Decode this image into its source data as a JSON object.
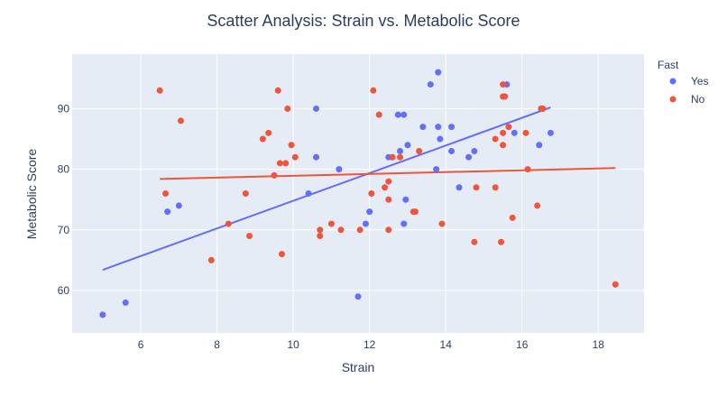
{
  "chart_data": {
    "type": "scatter",
    "title": "Scatter Analysis: Strain vs. Metabolic Score",
    "xlabel": "Strain",
    "ylabel": "Metabolic Score",
    "xlim": [
      4.2,
      19.2
    ],
    "ylim": [
      53.0,
      99.0
    ],
    "xticks": [
      6,
      8,
      10,
      12,
      14,
      16,
      18
    ],
    "yticks": [
      60,
      70,
      80,
      90
    ],
    "grid": true,
    "legend": {
      "title": "Fast",
      "placement": "right"
    },
    "series": [
      {
        "name": "Yes",
        "color": "#636efa",
        "points": [
          [
            5.0,
            56
          ],
          [
            5.6,
            58
          ],
          [
            6.7,
            73
          ],
          [
            7.0,
            74
          ],
          [
            10.4,
            76
          ],
          [
            10.6,
            90
          ],
          [
            10.6,
            82
          ],
          [
            11.2,
            80
          ],
          [
            11.7,
            59
          ],
          [
            11.9,
            71
          ],
          [
            12.0,
            73
          ],
          [
            12.5,
            82
          ],
          [
            12.6,
            82
          ],
          [
            12.75,
            89
          ],
          [
            12.8,
            83
          ],
          [
            12.9,
            89
          ],
          [
            12.95,
            75
          ],
          [
            12.9,
            71
          ],
          [
            13.0,
            84
          ],
          [
            13.4,
            87
          ],
          [
            13.6,
            94
          ],
          [
            13.8,
            96
          ],
          [
            13.8,
            87
          ],
          [
            13.85,
            85
          ],
          [
            13.75,
            80
          ],
          [
            14.15,
            87
          ],
          [
            14.15,
            83
          ],
          [
            14.35,
            77
          ],
          [
            14.6,
            82
          ],
          [
            14.75,
            83
          ],
          [
            15.6,
            94
          ],
          [
            15.8,
            86
          ],
          [
            16.45,
            84
          ],
          [
            16.5,
            90
          ],
          [
            16.75,
            86
          ]
        ],
        "trend": [
          [
            5.0,
            63.4
          ],
          [
            16.75,
            90.2
          ]
        ]
      },
      {
        "name": "No",
        "color": "#ef553b",
        "points": [
          [
            6.5,
            93
          ],
          [
            6.65,
            76
          ],
          [
            7.05,
            88
          ],
          [
            7.85,
            65
          ],
          [
            8.3,
            71
          ],
          [
            8.75,
            76
          ],
          [
            8.85,
            69
          ],
          [
            9.2,
            85
          ],
          [
            9.35,
            86
          ],
          [
            9.5,
            79
          ],
          [
            9.6,
            93
          ],
          [
            9.65,
            81
          ],
          [
            9.7,
            66
          ],
          [
            9.8,
            81
          ],
          [
            9.85,
            90
          ],
          [
            9.95,
            84
          ],
          [
            10.05,
            82
          ],
          [
            10.7,
            70
          ],
          [
            10.7,
            69
          ],
          [
            11.0,
            71
          ],
          [
            11.25,
            70
          ],
          [
            11.75,
            70
          ],
          [
            12.05,
            76
          ],
          [
            12.1,
            93
          ],
          [
            12.25,
            89
          ],
          [
            12.4,
            77
          ],
          [
            12.5,
            78
          ],
          [
            12.5,
            75
          ],
          [
            12.5,
            70
          ],
          [
            12.6,
            82
          ],
          [
            12.8,
            82
          ],
          [
            13.15,
            73
          ],
          [
            13.2,
            73
          ],
          [
            13.3,
            83
          ],
          [
            13.9,
            71
          ],
          [
            14.75,
            68
          ],
          [
            14.8,
            77
          ],
          [
            15.3,
            85
          ],
          [
            15.3,
            77
          ],
          [
            15.45,
            68
          ],
          [
            15.5,
            94
          ],
          [
            15.5,
            92
          ],
          [
            15.55,
            92
          ],
          [
            15.5,
            86
          ],
          [
            15.5,
            84
          ],
          [
            15.65,
            87
          ],
          [
            15.75,
            72
          ],
          [
            16.1,
            86
          ],
          [
            16.15,
            80
          ],
          [
            16.4,
            74
          ],
          [
            16.5,
            90
          ],
          [
            16.55,
            90
          ],
          [
            18.45,
            61
          ]
        ],
        "trend": [
          [
            6.5,
            78.4
          ],
          [
            18.45,
            80.2
          ]
        ]
      }
    ]
  }
}
